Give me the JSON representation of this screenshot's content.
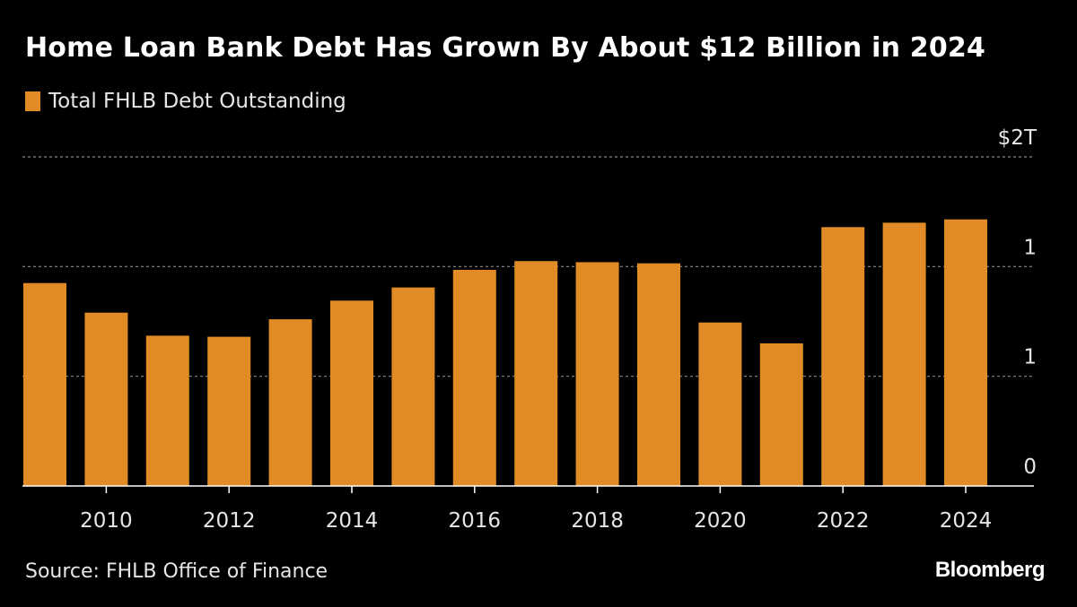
{
  "colors": {
    "background": "#000000",
    "bar": "#e08b25",
    "text": "#ffffff",
    "muted_text": "#e6e6e6",
    "grid": "#8a8a8a"
  },
  "header": {
    "title": "Home Loan Bank Debt Has Grown By About $12 Billion in 2024"
  },
  "legend": {
    "label": "Total FHLB Debt Outstanding"
  },
  "footer": {
    "source": "Source: FHLB Office of Finance",
    "logo": "Bloomberg"
  },
  "chart_data": {
    "type": "bar",
    "title": "Home Loan Bank Debt Has Grown By About $12 Billion in 2024",
    "series": [
      {
        "name": "Total FHLB Debt Outstanding",
        "values": [
          0.925,
          0.79,
          0.685,
          0.68,
          0.76,
          0.845,
          0.905,
          0.985,
          1.025,
          1.02,
          1.015,
          0.745,
          0.65,
          1.18,
          1.2,
          1.215
        ]
      }
    ],
    "categories": [
      "2009",
      "2010",
      "2011",
      "2012",
      "2013",
      "2014",
      "2015",
      "2016",
      "2017",
      "2018",
      "2019",
      "2020",
      "2021",
      "2022",
      "2023",
      "2024"
    ],
    "x_tick_labels": [
      "2010",
      "2012",
      "2014",
      "2016",
      "2018",
      "2020",
      "2022",
      "2024"
    ],
    "y_ticks": [
      {
        "value": 0,
        "label": "0"
      },
      {
        "value": 0.5,
        "label": "1"
      },
      {
        "value": 1.0,
        "label": "1"
      },
      {
        "value": 1.5,
        "label": "$2T"
      }
    ],
    "ylim": [
      0,
      1.5
    ],
    "xlabel": "",
    "ylabel": "",
    "grid": true,
    "legend_position": "top-left"
  }
}
